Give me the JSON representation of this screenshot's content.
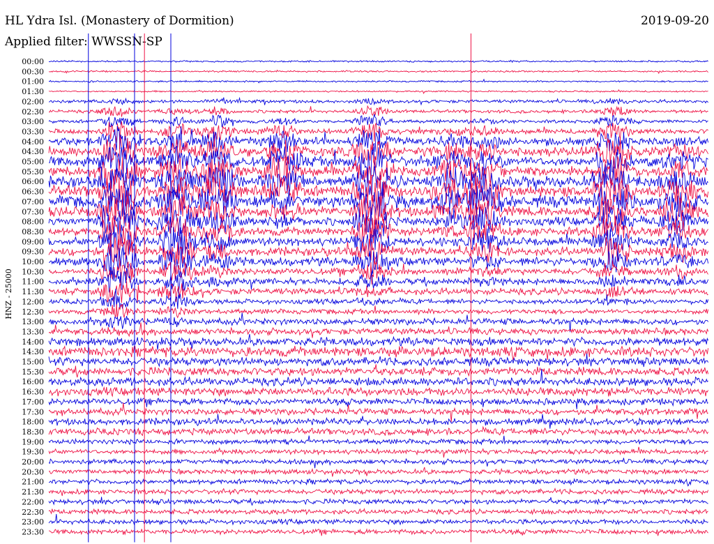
{
  "header": {
    "title": "HL Ydra Isl. (Monastery of Dormition)",
    "date": "2019-09-20",
    "filter": "Applied filter: WWSSN-SP"
  },
  "chart_data": {
    "type": "line",
    "title": "HL Ydra Isl. (Monastery of Dormition)",
    "ylabel": "HNZ - 25000",
    "row_labels": [
      "00:00",
      "00:30",
      "01:00",
      "01:30",
      "02:00",
      "02:30",
      "03:00",
      "03:30",
      "04:00",
      "04:30",
      "05:00",
      "05:30",
      "06:00",
      "06:30",
      "07:00",
      "07:30",
      "08:00",
      "08:30",
      "09:00",
      "09:30",
      "10:00",
      "10:30",
      "11:00",
      "11:30",
      "12:00",
      "12:30",
      "13:00",
      "13:30",
      "14:00",
      "14:30",
      "15:00",
      "15:30",
      "16:00",
      "16:30",
      "17:00",
      "17:30",
      "18:00",
      "18:30",
      "19:00",
      "19:30",
      "20:00",
      "20:30",
      "21:00",
      "21:30",
      "22:00",
      "22:30",
      "23:00",
      "23:30"
    ],
    "row_colors": [
      "#0000dd",
      "#ee1144"
    ],
    "noise_level": [
      1,
      1,
      1,
      1,
      2,
      2,
      2,
      3,
      5,
      6,
      6,
      6,
      7,
      7,
      7,
      6,
      5,
      5,
      5,
      5,
      5,
      4,
      4,
      4,
      3,
      3,
      4,
      4,
      5,
      6,
      5,
      5,
      5,
      5,
      4,
      4,
      4,
      4,
      3,
      3,
      3,
      3,
      3,
      3,
      3,
      3,
      3,
      3
    ],
    "events": [
      {
        "x": 0.06,
        "rows": [
          0,
          47
        ],
        "type": "spike"
      },
      {
        "x": 0.105,
        "rows": [
          4,
          27
        ],
        "amp": 40,
        "type": "quake"
      },
      {
        "x": 0.13,
        "rows": [
          0,
          47
        ],
        "type": "spike"
      },
      {
        "x": 0.145,
        "rows": [
          0,
          47
        ],
        "type": "spike"
      },
      {
        "x": 0.185,
        "rows": [
          0,
          47
        ],
        "type": "spike"
      },
      {
        "x": 0.195,
        "rows": [
          5,
          26
        ],
        "amp": 28,
        "type": "quake"
      },
      {
        "x": 0.255,
        "rows": [
          4,
          22
        ],
        "amp": 24,
        "type": "quake"
      },
      {
        "x": 0.355,
        "rows": [
          6,
          16
        ],
        "amp": 22,
        "type": "quake"
      },
      {
        "x": 0.49,
        "rows": [
          4,
          24
        ],
        "amp": 32,
        "type": "quake"
      },
      {
        "x": 0.64,
        "rows": [
          0,
          47
        ],
        "type": "spike"
      },
      {
        "x": 0.61,
        "rows": [
          7,
          18
        ],
        "amp": 18,
        "type": "quake"
      },
      {
        "x": 0.66,
        "rows": [
          6,
          22
        ],
        "amp": 22,
        "type": "quake"
      },
      {
        "x": 0.855,
        "rows": [
          4,
          24
        ],
        "amp": 30,
        "type": "quake"
      },
      {
        "x": 0.955,
        "rows": [
          8,
          22
        ],
        "amp": 20,
        "type": "quake"
      }
    ]
  }
}
